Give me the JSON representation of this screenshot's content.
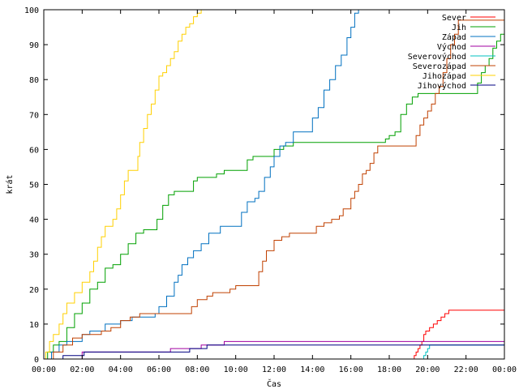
{
  "chart_data": {
    "type": "line",
    "title": "",
    "xlabel": "Čas",
    "ylabel": "krát",
    "xlim": [
      0,
      24
    ],
    "ylim": [
      0,
      100
    ],
    "x_ticks": [
      "00:00",
      "02:00",
      "04:00",
      "06:00",
      "08:00",
      "10:00",
      "12:00",
      "14:00",
      "16:00",
      "18:00",
      "20:00",
      "22:00",
      "00:00"
    ],
    "y_ticks": [
      "0",
      "10",
      "20",
      "30",
      "40",
      "50",
      "60",
      "70",
      "80",
      "90",
      "100"
    ],
    "grid": false,
    "legend_position": "top-right",
    "x_unit": "hours since 00:00",
    "series": [
      {
        "name": "Sever",
        "color": "#ff0000",
        "points": [
          [
            0,
            0
          ],
          [
            19.2,
            0
          ],
          [
            19.3,
            1
          ],
          [
            19.4,
            2
          ],
          [
            19.5,
            3
          ],
          [
            19.6,
            4
          ],
          [
            19.7,
            5
          ],
          [
            19.8,
            7
          ],
          [
            19.9,
            8
          ],
          [
            20.1,
            9
          ],
          [
            20.3,
            10
          ],
          [
            20.5,
            11
          ],
          [
            20.7,
            12
          ],
          [
            20.9,
            13
          ],
          [
            21.1,
            14
          ],
          [
            24,
            14
          ]
        ]
      },
      {
        "name": "Jih",
        "color": "#00a000",
        "points": [
          [
            0,
            0
          ],
          [
            0.2,
            2
          ],
          [
            0.5,
            4
          ],
          [
            0.8,
            5
          ],
          [
            1.2,
            9
          ],
          [
            1.6,
            13
          ],
          [
            2.0,
            16
          ],
          [
            2.4,
            20
          ],
          [
            2.8,
            22
          ],
          [
            3.2,
            26
          ],
          [
            3.6,
            27
          ],
          [
            4.0,
            30
          ],
          [
            4.4,
            33
          ],
          [
            4.8,
            36
          ],
          [
            5.2,
            37
          ],
          [
            5.6,
            37
          ],
          [
            5.9,
            40
          ],
          [
            6.2,
            44
          ],
          [
            6.5,
            47
          ],
          [
            6.8,
            48
          ],
          [
            7.0,
            48
          ],
          [
            7.6,
            48
          ],
          [
            7.8,
            51
          ],
          [
            8.0,
            52
          ],
          [
            8.2,
            52
          ],
          [
            8.6,
            52
          ],
          [
            9.0,
            53
          ],
          [
            9.4,
            54
          ],
          [
            10.4,
            54
          ],
          [
            10.6,
            57
          ],
          [
            10.9,
            58
          ],
          [
            11.8,
            58
          ],
          [
            12.0,
            60
          ],
          [
            12.5,
            61
          ],
          [
            13.0,
            62
          ],
          [
            17.6,
            62
          ],
          [
            17.8,
            63
          ],
          [
            18.0,
            64
          ],
          [
            18.3,
            65
          ],
          [
            18.6,
            70
          ],
          [
            18.9,
            73
          ],
          [
            19.2,
            75
          ],
          [
            19.5,
            76
          ],
          [
            22.4,
            76
          ],
          [
            22.6,
            79
          ],
          [
            22.8,
            82
          ],
          [
            23.0,
            84
          ],
          [
            23.2,
            86
          ],
          [
            23.4,
            89
          ],
          [
            23.6,
            91
          ],
          [
            23.8,
            93
          ],
          [
            24,
            96
          ]
        ]
      },
      {
        "name": "Západ",
        "color": "#0070c0",
        "points": [
          [
            0,
            0
          ],
          [
            0.4,
            2
          ],
          [
            0.8,
            4
          ],
          [
            1.2,
            5
          ],
          [
            2.0,
            7
          ],
          [
            2.4,
            8
          ],
          [
            3.2,
            10
          ],
          [
            4.0,
            11
          ],
          [
            4.6,
            12
          ],
          [
            5.2,
            12
          ],
          [
            5.8,
            13
          ],
          [
            6.0,
            15
          ],
          [
            6.4,
            18
          ],
          [
            6.8,
            22
          ],
          [
            7.0,
            24
          ],
          [
            7.2,
            27
          ],
          [
            7.5,
            29
          ],
          [
            7.8,
            31
          ],
          [
            8.2,
            33
          ],
          [
            8.6,
            36
          ],
          [
            9.2,
            38
          ],
          [
            10.0,
            38
          ],
          [
            10.3,
            42
          ],
          [
            10.6,
            45
          ],
          [
            11.0,
            46
          ],
          [
            11.2,
            48
          ],
          [
            11.5,
            52
          ],
          [
            11.8,
            55
          ],
          [
            12.0,
            58
          ],
          [
            12.3,
            61
          ],
          [
            12.6,
            62
          ],
          [
            13.0,
            65
          ],
          [
            13.8,
            65
          ],
          [
            14.0,
            69
          ],
          [
            14.3,
            72
          ],
          [
            14.6,
            77
          ],
          [
            14.9,
            80
          ],
          [
            15.2,
            84
          ],
          [
            15.5,
            87
          ],
          [
            15.8,
            92
          ],
          [
            16.0,
            95
          ],
          [
            16.2,
            99
          ],
          [
            16.4,
            100
          ],
          [
            24,
            100
          ]
        ]
      },
      {
        "name": "Východ",
        "color": "#a000a0",
        "points": [
          [
            0,
            0
          ],
          [
            1.9,
            0
          ],
          [
            2.0,
            2
          ],
          [
            6.5,
            2
          ],
          [
            6.6,
            3
          ],
          [
            8.0,
            3
          ],
          [
            8.2,
            4
          ],
          [
            9.2,
            4
          ],
          [
            9.4,
            5
          ],
          [
            24,
            5
          ]
        ]
      },
      {
        "name": "Severovýchod",
        "color": "#00c0c0",
        "points": [
          [
            0,
            0
          ],
          [
            19.7,
            0
          ],
          [
            19.8,
            1
          ],
          [
            19.9,
            2
          ],
          [
            20.0,
            3
          ],
          [
            20.1,
            4
          ],
          [
            24,
            4
          ]
        ]
      },
      {
        "name": "Severozápad",
        "color": "#c04000",
        "points": [
          [
            0,
            0
          ],
          [
            0.5,
            2
          ],
          [
            1.0,
            4
          ],
          [
            1.5,
            6
          ],
          [
            2.0,
            7
          ],
          [
            3.0,
            8
          ],
          [
            3.5,
            9
          ],
          [
            4.0,
            11
          ],
          [
            4.5,
            12
          ],
          [
            5.0,
            13
          ],
          [
            7.5,
            13
          ],
          [
            7.7,
            15
          ],
          [
            8.0,
            17
          ],
          [
            8.5,
            18
          ],
          [
            8.8,
            19
          ],
          [
            9.2,
            19
          ],
          [
            9.7,
            20
          ],
          [
            10.0,
            21
          ],
          [
            11.0,
            21
          ],
          [
            11.2,
            25
          ],
          [
            11.4,
            28
          ],
          [
            11.6,
            31
          ],
          [
            12.0,
            34
          ],
          [
            12.4,
            35
          ],
          [
            12.8,
            36
          ],
          [
            14.0,
            36
          ],
          [
            14.2,
            38
          ],
          [
            14.6,
            39
          ],
          [
            15.0,
            40
          ],
          [
            15.4,
            41
          ],
          [
            15.6,
            43
          ],
          [
            16.0,
            46
          ],
          [
            16.2,
            48
          ],
          [
            16.4,
            50
          ],
          [
            16.6,
            53
          ],
          [
            16.8,
            54
          ],
          [
            17.0,
            56
          ],
          [
            17.2,
            59
          ],
          [
            17.4,
            61
          ],
          [
            19.2,
            61
          ],
          [
            19.4,
            64
          ],
          [
            19.6,
            67
          ],
          [
            19.8,
            69
          ],
          [
            20.0,
            71
          ],
          [
            20.2,
            73
          ],
          [
            20.4,
            76
          ],
          [
            20.6,
            78
          ],
          [
            20.8,
            82
          ],
          [
            21.0,
            86
          ],
          [
            21.2,
            90
          ],
          [
            21.4,
            93
          ],
          [
            21.6,
            97
          ],
          [
            24,
            97
          ]
        ]
      },
      {
        "name": "Jihozápad",
        "color": "#ffd000",
        "points": [
          [
            0,
            0
          ],
          [
            0.1,
            2
          ],
          [
            0.3,
            5
          ],
          [
            0.5,
            7
          ],
          [
            0.8,
            10
          ],
          [
            1.0,
            13
          ],
          [
            1.2,
            16
          ],
          [
            1.6,
            19
          ],
          [
            2.0,
            22
          ],
          [
            2.4,
            25
          ],
          [
            2.6,
            28
          ],
          [
            2.8,
            32
          ],
          [
            3.0,
            35
          ],
          [
            3.2,
            38
          ],
          [
            3.6,
            40
          ],
          [
            3.8,
            43
          ],
          [
            4.0,
            47
          ],
          [
            4.2,
            51
          ],
          [
            4.4,
            54
          ],
          [
            4.8,
            54
          ],
          [
            4.9,
            58
          ],
          [
            5.0,
            62
          ],
          [
            5.2,
            66
          ],
          [
            5.4,
            70
          ],
          [
            5.6,
            73
          ],
          [
            5.8,
            77
          ],
          [
            6.0,
            81
          ],
          [
            6.2,
            82
          ],
          [
            6.4,
            84
          ],
          [
            6.6,
            86
          ],
          [
            6.8,
            88
          ],
          [
            7.0,
            91
          ],
          [
            7.2,
            93
          ],
          [
            7.4,
            95
          ],
          [
            7.6,
            96
          ],
          [
            7.8,
            98
          ],
          [
            8.0,
            99
          ],
          [
            8.2,
            100
          ],
          [
            24,
            100
          ]
        ]
      },
      {
        "name": "Jihovýchod",
        "color": "#000080",
        "points": [
          [
            0,
            0
          ],
          [
            0.9,
            0
          ],
          [
            1.0,
            1
          ],
          [
            2.0,
            1
          ],
          [
            2.1,
            2
          ],
          [
            7.5,
            2
          ],
          [
            7.6,
            3
          ],
          [
            8.4,
            3
          ],
          [
            8.5,
            4
          ],
          [
            24,
            4
          ]
        ]
      }
    ]
  }
}
